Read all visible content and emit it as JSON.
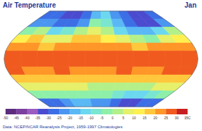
{
  "chart_data": {
    "type": "heatmap",
    "title": "Air Temperature",
    "subtitle": "Jan",
    "source": "Data: NCEP/NCAR Reanalysis Project, 1959-1997 Climatologies",
    "x": [
      -165,
      -135,
      -105,
      -75,
      -45,
      -15,
      15,
      45,
      75,
      105,
      135,
      165
    ],
    "y": [
      82.5,
      67.5,
      52.5,
      37.5,
      22.5,
      7.5,
      -7.5,
      -22.5,
      -37.5,
      -52.5,
      -67.5,
      -82.5
    ],
    "xlim": [
      -180,
      180
    ],
    "ylim": [
      -90,
      90
    ],
    "tick_labels": false,
    "cells": [
      [
        -30,
        -30,
        -32,
        -35,
        -30,
        -20,
        -15,
        -25,
        -30,
        -32,
        -32,
        -30
      ],
      [
        -25,
        -25,
        -30,
        -30,
        -25,
        -5,
        -10,
        -20,
        -30,
        -35,
        -35,
        -25
      ],
      [
        -5,
        2,
        -15,
        -10,
        2,
        8,
        0,
        -12,
        -18,
        -20,
        -15,
        0
      ],
      [
        12,
        15,
        5,
        5,
        18,
        15,
        10,
        5,
        0,
        -2,
        5,
        12
      ],
      [
        22,
        22,
        18,
        22,
        24,
        22,
        20,
        20,
        18,
        20,
        22,
        24
      ],
      [
        27,
        26,
        27,
        27,
        27,
        27,
        27,
        26,
        28,
        27,
        28,
        28
      ],
      [
        28,
        27,
        26,
        26,
        28,
        27,
        25,
        27,
        28,
        28,
        29,
        29
      ],
      [
        25,
        24,
        22,
        25,
        24,
        20,
        24,
        25,
        22,
        23,
        29,
        25
      ],
      [
        16,
        15,
        15,
        18,
        18,
        17,
        17,
        18,
        15,
        16,
        18,
        17
      ],
      [
        6,
        5,
        5,
        7,
        5,
        4,
        3,
        3,
        3,
        4,
        5,
        6
      ],
      [
        -2,
        -2,
        -3,
        -5,
        -3,
        -2,
        -5,
        -10,
        -15,
        -15,
        -10,
        -5
      ],
      [
        -28,
        -30,
        -25,
        -20,
        -20,
        -22,
        -25,
        -30,
        -32,
        -32,
        -30,
        -28
      ]
    ],
    "colorbar": {
      "range": [
        -50,
        35
      ],
      "ticks": [
        -50,
        -45,
        -40,
        -35,
        -30,
        -25,
        -20,
        -15,
        -10,
        -5,
        0,
        5,
        10,
        15,
        20,
        25,
        30,
        {
          "value": 35,
          "label": "35C"
        }
      ],
      "colors": [
        "#5c2d7e",
        "#7b3fa0",
        "#9a5cc0",
        "#4b4bd0",
        "#3c6ee6",
        "#4a96f0",
        "#5ab8f5",
        "#6cd8f0",
        "#7ae6d0",
        "#8ef0a8",
        "#b4f08a",
        "#e6f06a",
        "#fff050",
        "#ffc83c",
        "#ff9628",
        "#f05a1e",
        "#c81e1e"
      ]
    }
  }
}
